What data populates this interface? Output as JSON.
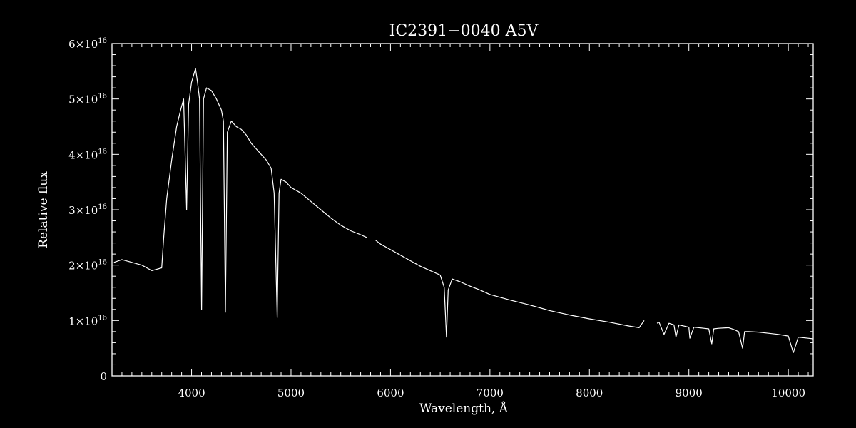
{
  "chart_data": {
    "type": "line",
    "title": "IC2391−0040   A5V",
    "xlabel": "Wavelength, Å",
    "ylabel": "Relative flux",
    "xlim": [
      3200,
      10250
    ],
    "ylim": [
      0,
      6e+16
    ],
    "grid": false,
    "x_ticks": [
      {
        "value": 4000,
        "label": "4000"
      },
      {
        "value": 5000,
        "label": "5000"
      },
      {
        "value": 6000,
        "label": "6000"
      },
      {
        "value": 7000,
        "label": "7000"
      },
      {
        "value": 8000,
        "label": "8000"
      },
      {
        "value": 9000,
        "label": "9000"
      },
      {
        "value": 10000,
        "label": "10000"
      }
    ],
    "y_ticks": [
      {
        "value": 0,
        "mantissa": "0",
        "exponent": ""
      },
      {
        "value": 1e+16,
        "mantissa": "1×10",
        "exponent": "16"
      },
      {
        "value": 2e+16,
        "mantissa": "2×10",
        "exponent": "16"
      },
      {
        "value": 3e+16,
        "mantissa": "3×10",
        "exponent": "16"
      },
      {
        "value": 4e+16,
        "mantissa": "4×10",
        "exponent": "16"
      },
      {
        "value": 5e+16,
        "mantissa": "5×10",
        "exponent": "16"
      },
      {
        "value": 6e+16,
        "mantissa": "6×10",
        "exponent": "16"
      }
    ],
    "colors": {
      "background": "#000000",
      "line": "#ffffff",
      "axes": "#ffffff"
    },
    "series": [
      {
        "segments": [
          {
            "x": [
              3220,
              3300,
              3400,
              3500,
              3600,
              3700,
              3720,
              3750,
              3800,
              3850,
              3890,
              3920,
              3950,
              3970,
              4000,
              4040,
              4060,
              4080,
              4101,
              4120,
              4150,
              4200,
              4250,
              4300,
              4320,
              4340,
              4360,
              4400,
              4450,
              4500,
              4550,
              4600,
              4650,
              4700,
              4750,
              4800,
              4830,
              4861,
              4880,
              4900,
              4950,
              5000,
              5100,
              5200,
              5300,
              5400,
              5500,
              5600,
              5700,
              5760
            ],
            "y": [
              2.05e+16,
              2.1e+16,
              2.05e+16,
              2e+16,
              1.9e+16,
              1.95e+16,
              2.5e+16,
              3.2e+16,
              3.9e+16,
              4.5e+16,
              4.8e+16,
              5e+16,
              3e+16,
              4.9e+16,
              5.3e+16,
              5.55e+16,
              5.3e+16,
              5e+16,
              1.2e+16,
              5e+16,
              5.2e+16,
              5.15e+16,
              5e+16,
              4.8e+16,
              4.6e+16,
              1.15e+16,
              4.4e+16,
              4.6e+16,
              4.5e+16,
              4.45e+16,
              4.35e+16,
              4.2e+16,
              4.1e+16,
              4e+16,
              3.9e+16,
              3.75e+16,
              3.3e+16,
              1.05e+16,
              3.3e+16,
              3.55e+16,
              3.5e+16,
              3.4e+16,
              3.3e+16,
              3.15e+16,
              3e+16,
              2.85e+16,
              2.72e+16,
              2.62e+16,
              2.55e+16,
              2.5e+16
            ]
          },
          {
            "x": [
              5850,
              5900,
              6000,
              6100,
              6200,
              6300,
              6400,
              6500,
              6540,
              6563,
              6580,
              6620,
              6700,
              6800,
              6900,
              7000,
              7200,
              7400,
              7600,
              7800,
              8000,
              8200,
              8400,
              8500,
              8550
            ],
            "y": [
              2.45e+16,
              2.38e+16,
              2.28e+16,
              2.18e+16,
              2.08e+16,
              1.98e+16,
              1.9e+16,
              1.82e+16,
              1.6e+16,
              7000000000000000.0,
              1.55e+16,
              1.75e+16,
              1.7e+16,
              1.62e+16,
              1.55e+16,
              1.47e+16,
              1.37e+16,
              1.28e+16,
              1.18e+16,
              1.1e+16,
              1.03e+16,
              9700000000000000.0,
              9000000000000000.0,
              8700000000000000.0,
              1e+16
            ]
          },
          {
            "x": [
              8680,
              8700,
              8750,
              8800,
              8850,
              8870,
              8900,
              8950,
              9000,
              9010,
              9050,
              9100,
              9150,
              9200,
              9230,
              9250,
              9300,
              9400,
              9450,
              9500,
              9540,
              9560,
              9600,
              9700,
              9800,
              9900,
              10000,
              10050,
              10100,
              10200,
              10250
            ],
            "y": [
              9500000000000000.0,
              9700000000000000.0,
              7500000000000000.0,
              9500000000000000.0,
              9200000000000000.0,
              7000000000000000.0,
              9200000000000000.0,
              9000000000000000.0,
              8800000000000000.0,
              6800000000000000.0,
              8800000000000000.0,
              8700000000000000.0,
              8600000000000000.0,
              8500000000000000.0,
              5800000000000000.0,
              8500000000000000.0,
              8600000000000000.0,
              8700000000000000.0,
              8400000000000000.0,
              8000000000000000.0,
              5000000000000000.0,
              8000000000000000.0,
              8000000000000000.0,
              7900000000000000.0,
              7700000000000000.0,
              7500000000000000.0,
              7200000000000000.0,
              4200000000000000.0,
              7000000000000000.0,
              6800000000000000.0,
              6700000000000000.0
            ]
          }
        ]
      }
    ]
  }
}
